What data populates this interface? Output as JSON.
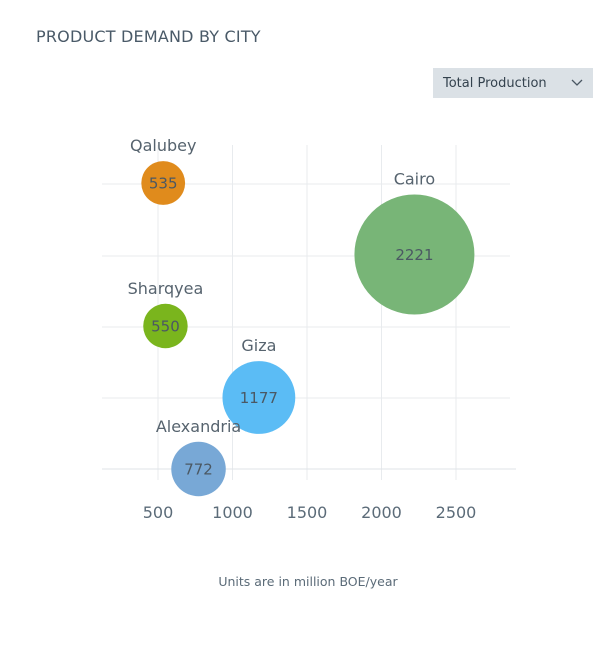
{
  "header": {
    "title": "PRODUCT DEMAND BY CITY"
  },
  "filter": {
    "selected": "Total Production",
    "icon": "chevron-down-icon"
  },
  "footnote": "Units are in million BOE/year",
  "chart_data": {
    "type": "bubble",
    "title": "PRODUCT DEMAND BY CITY",
    "xlabel": "",
    "ylabel": "",
    "x_ticks": [
      500,
      1000,
      1500,
      2000,
      2500
    ],
    "grid": true,
    "y_axis_labels": false,
    "series": [
      {
        "label": "Qalubey",
        "x": 535,
        "y": 5,
        "size": 535,
        "color": "#e08b1c"
      },
      {
        "label": "Cairo",
        "x": 2221,
        "y": 4,
        "size": 2221,
        "color": "#78b577"
      },
      {
        "label": "Sharqyea",
        "x": 550,
        "y": 3,
        "size": 550,
        "color": "#7ab51d"
      },
      {
        "label": "Giza",
        "x": 1177,
        "y": 2,
        "size": 1177,
        "color": "#5bbcf5"
      },
      {
        "label": "Alexandria",
        "x": 772,
        "y": 1,
        "size": 772,
        "color": "#78a8d6"
      }
    ]
  }
}
